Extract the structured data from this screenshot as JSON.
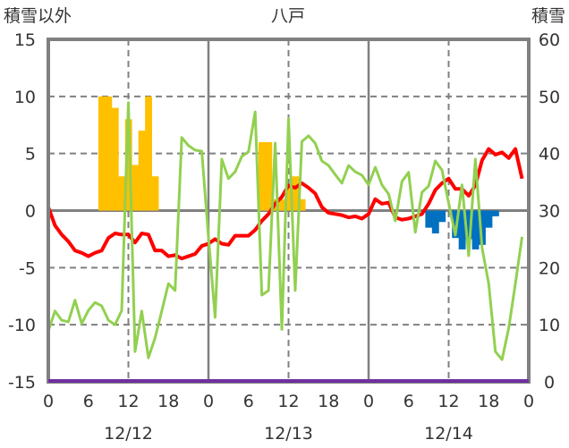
{
  "chart_data": {
    "type": "line",
    "title": "八戸",
    "ylabel": "積雪以外",
    "y2label": "積雪",
    "ylim": [
      -15,
      15
    ],
    "y2lim": [
      0,
      60
    ],
    "yticks": [
      15,
      10,
      5,
      0,
      -5,
      -10,
      -15
    ],
    "y2ticks": [
      60,
      50,
      40,
      30,
      20,
      10,
      0
    ],
    "xlim": [
      0,
      72
    ],
    "xtick_labels": [
      "0",
      "6",
      "12",
      "18",
      "0",
      "6",
      "12",
      "18",
      "0",
      "6",
      "12",
      "18",
      "0"
    ],
    "date_labels": [
      "12/12",
      "12/13",
      "12/14"
    ],
    "grid": true,
    "colors": {
      "temp": "#ff0000",
      "green": "#92d050",
      "snow_pos": "#ffc000",
      "snow_neg": "#0070c0",
      "purple": "#7030a0",
      "frame": "#808080"
    },
    "series": [
      {
        "name": "temperature",
        "axis": "left",
        "type": "line",
        "color": "#ff0000",
        "x_hours": [
          0,
          1,
          2,
          3,
          4,
          5,
          6,
          7,
          8,
          9,
          10,
          11,
          12,
          13,
          14,
          15,
          16,
          17,
          18,
          19,
          20,
          21,
          22,
          23,
          24,
          25,
          26,
          27,
          28,
          29,
          30,
          31,
          32,
          33,
          34,
          35,
          36,
          37,
          38,
          39,
          40,
          41,
          42,
          43,
          44,
          45,
          46,
          47,
          48,
          49,
          50,
          51,
          52,
          53,
          54,
          55,
          56,
          57,
          58,
          59,
          60,
          61,
          62,
          63,
          64,
          65,
          66,
          67,
          68,
          69,
          70,
          71
        ],
        "values": [
          0.3,
          -1.3,
          -2.1,
          -2.7,
          -3.5,
          -3.7,
          -4.0,
          -3.7,
          -3.5,
          -2.4,
          -2.0,
          -2.1,
          -2.1,
          -2.8,
          -2.0,
          -2.1,
          -3.5,
          -3.5,
          -4.0,
          -3.9,
          -4.2,
          -4.0,
          -3.8,
          -3.1,
          -2.9,
          -2.5,
          -2.9,
          -3.0,
          -2.2,
          -2.2,
          -2.2,
          -1.7,
          -0.9,
          -0.3,
          0.6,
          1.2,
          2.2,
          2.0,
          2.4,
          2.0,
          1.5,
          0.3,
          -0.2,
          -0.3,
          -0.4,
          -0.6,
          -0.5,
          -0.7,
          -0.3,
          1.0,
          0.6,
          0.7,
          -0.6,
          -0.8,
          -0.7,
          -0.5,
          -0.3,
          0.6,
          1.8,
          2.4,
          2.8,
          1.9,
          1.9,
          1.3,
          2.2,
          4.4,
          5.4,
          4.9,
          5.1,
          4.6,
          5.4,
          2.8
        ]
      },
      {
        "name": "snow_depth",
        "axis": "right",
        "type": "line",
        "color": "#92d050",
        "values": [
          8.9,
          12.4,
          10.8,
          10.5,
          14.3,
          10.2,
          12.5,
          13.9,
          13.3,
          10.8,
          10.0,
          12.5,
          48.9,
          5.3,
          12.4,
          4.2,
          7.7,
          12.4,
          17.2,
          16.0,
          42.8,
          41.4,
          40.6,
          40.4,
          25.4,
          11.3,
          39.0,
          35.6,
          36.8,
          39.5,
          40.3,
          47.3,
          15.2,
          16.0,
          41.8,
          9.2,
          46.1,
          16.0,
          42.1,
          43.1,
          41.8,
          38.7,
          37.9,
          36.3,
          34.8,
          37.9,
          36.8,
          36.2,
          34.5,
          37.6,
          34.5,
          32.9,
          28.2,
          35.1,
          36.7,
          26.2,
          33.2,
          34.3,
          38.7,
          37.1,
          31.3,
          25.7,
          34.5,
          22.1,
          39.0,
          23.5,
          17.2,
          5.3,
          3.9,
          9.4,
          17.2,
          25.4
        ]
      },
      {
        "name": "snow_increase",
        "axis": "left",
        "type": "bar",
        "color": "#ffc000",
        "x_hours": [
          8,
          9,
          10,
          11,
          12,
          13,
          14,
          15,
          16,
          32,
          33,
          34,
          35,
          36,
          37,
          38
        ],
        "values": [
          10,
          10,
          9,
          3,
          8,
          4,
          7,
          10,
          3,
          6,
          6,
          1,
          1,
          2,
          3,
          1
        ]
      },
      {
        "name": "snow_decrease",
        "axis": "left",
        "type": "bar",
        "color": "#0070c0",
        "x_hours": [
          57,
          58,
          59,
          61,
          62,
          63,
          64,
          65,
          66,
          67
        ],
        "values": [
          -1.5,
          -2,
          -1,
          -2.4,
          -3.4,
          -2.5,
          -3.4,
          -3,
          -1.5,
          -0.5
        ]
      },
      {
        "name": "baseline",
        "axis": "right",
        "type": "line",
        "color": "#7030a0",
        "values_constant": 0
      }
    ]
  }
}
